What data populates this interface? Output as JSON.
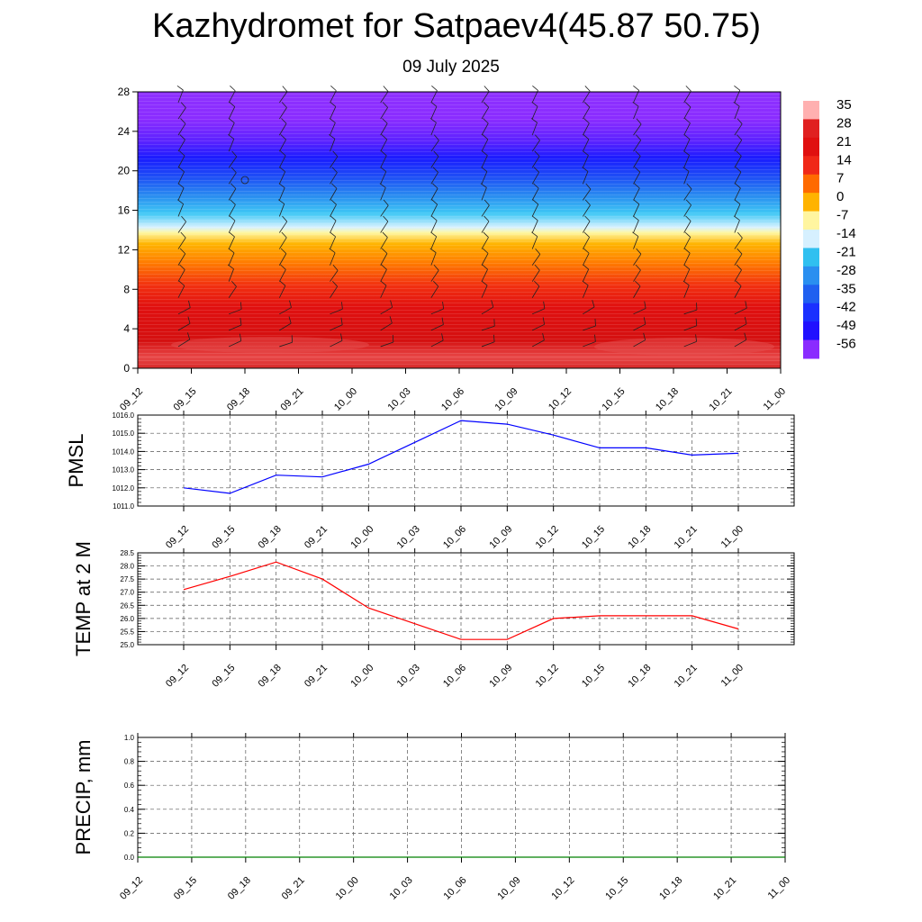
{
  "title": "Kazhydromet for Satpaev4(45.87 50.75)",
  "subtitle": "09 July 2025",
  "time_labels": [
    "09_12",
    "09_15",
    "09_18",
    "09_21",
    "10_00",
    "10_03",
    "10_06",
    "10_09",
    "10_12",
    "10_15",
    "10_18",
    "10_21",
    "11_00"
  ],
  "chart_data": [
    {
      "type": "heatmap",
      "description_field": "Vertical cross-section of temperature (shaded) with wind barbs",
      "x": [
        "09_12",
        "09_15",
        "09_18",
        "09_21",
        "10_00",
        "10_03",
        "10_06",
        "10_09",
        "10_12",
        "10_15",
        "10_18",
        "10_21",
        "11_00"
      ],
      "y_ticks": [
        0,
        4,
        8,
        12,
        16,
        20,
        24,
        28
      ],
      "ylim": [
        0,
        28
      ],
      "colorbar_labels": [
        "35",
        "28",
        "21",
        "14",
        "7",
        "0",
        "-7",
        "-14",
        "-21",
        "-28",
        "-35",
        "-42",
        "-49",
        "-56"
      ],
      "colorbar_values": [
        35,
        28,
        21,
        14,
        7,
        0,
        -7,
        -14,
        -21,
        -28,
        -35,
        -42,
        -49,
        -56
      ],
      "colorbar_colors": [
        "#ffb0b0",
        "#e02020",
        "#e01010",
        "#f02818",
        "#ff6a00",
        "#ffb300",
        "#fff5a0",
        "#d6f0ff",
        "#30c0f0",
        "#2a8ff0",
        "#2060f0",
        "#1a30ff",
        "#2010ff",
        "#8a2bff"
      ],
      "approx_temperature_by_height": [
        {
          "height": 0,
          "value": 34
        },
        {
          "height": 2,
          "value": 35
        },
        {
          "height": 4,
          "value": 30
        },
        {
          "height": 8,
          "value": 22
        },
        {
          "height": 12,
          "value": 8
        },
        {
          "height": 14,
          "value": -5
        },
        {
          "height": 16,
          "value": -20
        },
        {
          "height": 20,
          "value": -45
        },
        {
          "height": 22,
          "value": -56
        },
        {
          "height": 24,
          "value": -55
        },
        {
          "height": 28,
          "value": -60
        }
      ]
    },
    {
      "type": "line",
      "ylabel": "PMSL",
      "x": [
        "09_12",
        "09_15",
        "09_18",
        "09_21",
        "10_00",
        "10_03",
        "10_06",
        "10_09",
        "10_12",
        "10_15",
        "10_18",
        "10_21",
        "11_00"
      ],
      "values": [
        1012.0,
        1011.7,
        1012.7,
        1012.6,
        1013.3,
        1014.5,
        1015.7,
        1015.5,
        1014.9,
        1014.2,
        1014.2,
        1013.8,
        1013.9
      ],
      "ylim": [
        1011.0,
        1016.0
      ],
      "y_ticks": [
        "1011.0",
        "1012.0",
        "1013.0",
        "1014.0",
        "1015.0",
        "1016.0"
      ],
      "color": "#0000ff",
      "grid": true
    },
    {
      "type": "line",
      "ylabel": "TEMP at 2 M",
      "x": [
        "09_12",
        "09_15",
        "09_18",
        "09_21",
        "10_00",
        "10_03",
        "10_06",
        "10_09",
        "10_12",
        "10_15",
        "10_18",
        "10_21",
        "11_00"
      ],
      "values": [
        27.1,
        27.6,
        28.15,
        27.5,
        26.4,
        25.8,
        25.2,
        25.2,
        26.0,
        26.1,
        26.1,
        26.1,
        25.6
      ],
      "ylim": [
        25.0,
        28.5
      ],
      "y_ticks": [
        "25.0",
        "25.5",
        "26.0",
        "26.5",
        "27.0",
        "27.5",
        "28.0",
        "28.5"
      ],
      "color": "#ff0000",
      "grid": true
    },
    {
      "type": "line",
      "ylabel": "PRECIP, mm",
      "x": [
        "09_12",
        "09_15",
        "09_18",
        "09_21",
        "10_00",
        "10_03",
        "10_06",
        "10_09",
        "10_12",
        "10_15",
        "10_18",
        "10_21",
        "11_00"
      ],
      "values": [
        0,
        0,
        0,
        0,
        0,
        0,
        0,
        0,
        0,
        0,
        0,
        0,
        0
      ],
      "ylim": [
        0.0,
        1.0
      ],
      "y_ticks": [
        "0.0",
        "0.2",
        "0.4",
        "0.6",
        "0.8",
        "1.0"
      ],
      "color": "#008000",
      "grid": true
    }
  ]
}
